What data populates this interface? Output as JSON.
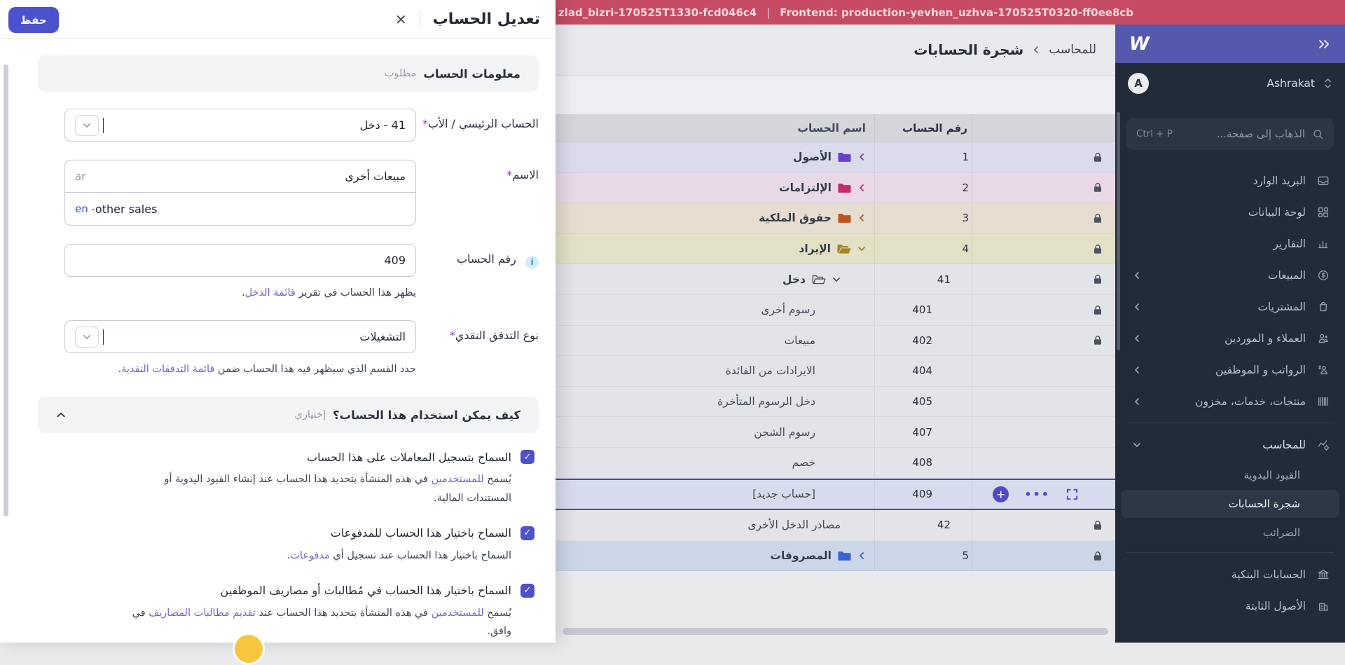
{
  "top_bar": {
    "backend_build": "zlad_bizri-170525T1330-fcd046c4",
    "separator": "|",
    "frontend_build": "Frontend: production-yevhen_uzhva-170525T0320-ff0ee8cb",
    "bg_color": "#c64b63"
  },
  "sidebar": {
    "logo": "W",
    "user": {
      "name": "Ashrakat",
      "avatar_initial": "A"
    },
    "search": {
      "placeholder": "الذهاب إلى صفحة...",
      "shortcut": "Ctrl + P"
    },
    "items": [
      {
        "label": "البريد الوارد",
        "icon": "inbox",
        "chevron": false
      },
      {
        "label": "لوحة البيانات",
        "icon": "dashboard",
        "chevron": false
      },
      {
        "label": "التقارير",
        "icon": "reports",
        "chevron": false
      },
      {
        "label": "المبيعات",
        "icon": "sales",
        "chevron": true
      },
      {
        "label": "المشتريات",
        "icon": "purchases",
        "chevron": true
      },
      {
        "label": "العملاء و الموردين",
        "icon": "customers",
        "chevron": true
      },
      {
        "label": "الرواتب و الموظفين",
        "icon": "payroll",
        "chevron": true
      },
      {
        "label": "منتجات، خدمات، مخزون",
        "icon": "products",
        "chevron": true
      }
    ],
    "accountant_section": {
      "label": "للمحاسب",
      "icon": "accountant",
      "expanded": true,
      "children": [
        {
          "label": "القيود اليدوية",
          "active": false
        },
        {
          "label": "شجرة الحسابات",
          "active": true
        },
        {
          "label": "الضرائب",
          "active": false
        }
      ]
    },
    "bottom_items": [
      {
        "label": "الحسابات البنكية",
        "icon": "bank"
      },
      {
        "label": "الأصول الثابتة",
        "icon": "building"
      }
    ]
  },
  "main": {
    "breadcrumb": {
      "parent": "للمحاسب",
      "current": "شجرة الحسابات"
    },
    "table": {
      "columns": {
        "name": "اسم الحساب",
        "number": "رقم الحساب"
      },
      "rows": [
        {
          "name": "الأصول",
          "number": "1",
          "depth": 0,
          "node": "collapsed",
          "color": "#6a3fd0",
          "bg": "#dbdbeb",
          "locked": true
        },
        {
          "name": "الإلتزامات",
          "number": "2",
          "depth": 0,
          "node": "collapsed",
          "color": "#c42a6b",
          "bg": "#e9d9e6",
          "locked": true
        },
        {
          "name": "حقوق الملكية",
          "number": "3",
          "depth": 0,
          "node": "collapsed",
          "color": "#bd541f",
          "bg": "#e6ddd0",
          "locked": true
        },
        {
          "name": "الإيراد",
          "number": "4",
          "depth": 0,
          "node": "expanded",
          "color": "#a3842a",
          "bg": "#e2e1c5",
          "locked": true
        },
        {
          "name": "دخل",
          "number": "41",
          "depth": 1,
          "node": "expanded-outline",
          "color": "#4a5260",
          "bg": "#e2e4e7",
          "locked": true
        },
        {
          "name": "رسوم أخرى",
          "number": "401",
          "depth": 2,
          "node": "leaf",
          "bg": "#e2e4e7",
          "locked": true
        },
        {
          "name": "مبيعات",
          "number": "402",
          "depth": 2,
          "node": "leaf",
          "bg": "#e2e4e7",
          "locked": true
        },
        {
          "name": "الايرادات من الفائدة",
          "number": "404",
          "depth": 2,
          "node": "leaf",
          "bg": "#e2e4e7",
          "locked": false
        },
        {
          "name": "دخل الرسوم المتأخرة",
          "number": "405",
          "depth": 2,
          "node": "leaf",
          "bg": "#e2e4e7",
          "locked": false
        },
        {
          "name": "رسوم الشحن",
          "number": "407",
          "depth": 2,
          "node": "leaf",
          "bg": "#e2e4e7",
          "locked": false
        },
        {
          "name": "خصم",
          "number": "408",
          "depth": 2,
          "node": "leaf",
          "bg": "#e2e4e7",
          "locked": false
        },
        {
          "name": "[حساب جديد]",
          "number": "409",
          "depth": 2,
          "node": "leaf",
          "bg": "#d7dbee",
          "locked": false,
          "selected": true
        },
        {
          "name": "مصادر الدخل الأخرى",
          "number": "42",
          "depth": 1,
          "node": "leaf",
          "bg": "#e2e4e7",
          "locked": true
        },
        {
          "name": "المصروفات",
          "number": "5",
          "depth": 0,
          "node": "collapsed",
          "color": "#3b62d9",
          "bg": "#cbd7e9",
          "locked": true
        }
      ],
      "selected_accent": "#4f46b8"
    }
  },
  "modal": {
    "title": "تعديل الحساب",
    "close_glyph": "✕",
    "save_label": "حفظ",
    "info_section": {
      "title": "معلومات الحساب",
      "badge": "مطلوب"
    },
    "fields": {
      "parent": {
        "label": "الحساب الرئيسي / الأب",
        "required": "*",
        "value": "41 - دخل"
      },
      "name": {
        "label": "الاسم",
        "required": "*",
        "ar_tag": "ar",
        "ar_value": "مبيعات أخرى",
        "en_tag": "en -",
        "en_value": "other sales"
      },
      "number": {
        "label": "رقم الحساب",
        "info_glyph": "i",
        "value": "409",
        "helper": [
          {
            "t": "يظهر هذا الحساب في تقرير "
          },
          {
            "link": "قائمة الدخل"
          },
          {
            "t": "."
          }
        ]
      },
      "cashflow": {
        "label": "نوع التدفق النقدي",
        "required": "*",
        "value": "التشغيلات",
        "helper": [
          {
            "t": "حدد القسم الذي سيظهر فيه هذا الحساب ضمن "
          },
          {
            "link": "قائمة التدفقات النقدية"
          },
          {
            "t": "."
          }
        ]
      }
    },
    "usage_section": {
      "title": "كيف يمكن استخدام هذا الحساب؟",
      "badge": "إختياري"
    },
    "checkboxes": [
      {
        "label": "السماح بتسجيل المعاملات على هذا الحساب",
        "checked": true,
        "helper": [
          {
            "t": "يُسمح "
          },
          {
            "link": "للمستخدمين"
          },
          {
            "t": " في هذه المنشأة بتحديد هذا الحساب عند إنشاء القيود اليدوية أو المستندات المالية."
          }
        ]
      },
      {
        "label": "السماح باختيار هذا الحساب للمدفوعات",
        "checked": true,
        "helper": [
          {
            "t": "السماح باختيار هذا الحساب عند تسجيل أي "
          },
          {
            "link": "مدفوعات"
          },
          {
            "t": "."
          }
        ]
      },
      {
        "label": "السماح باختيار هذا الحساب في مُطالبات أو مصاريف الموظفين",
        "checked": true,
        "helper": [
          {
            "t": "يُسمح "
          },
          {
            "link": "للمستخدمين"
          },
          {
            "t": " في هذه المنشأة بتحديد هذا الحساب عند "
          },
          {
            "link": "تقديم مطالبات المصاريف"
          },
          {
            "t": " في وافق."
          }
        ]
      }
    ],
    "accent_color": "#4c51cc",
    "link_color": "#7a5fd0"
  }
}
